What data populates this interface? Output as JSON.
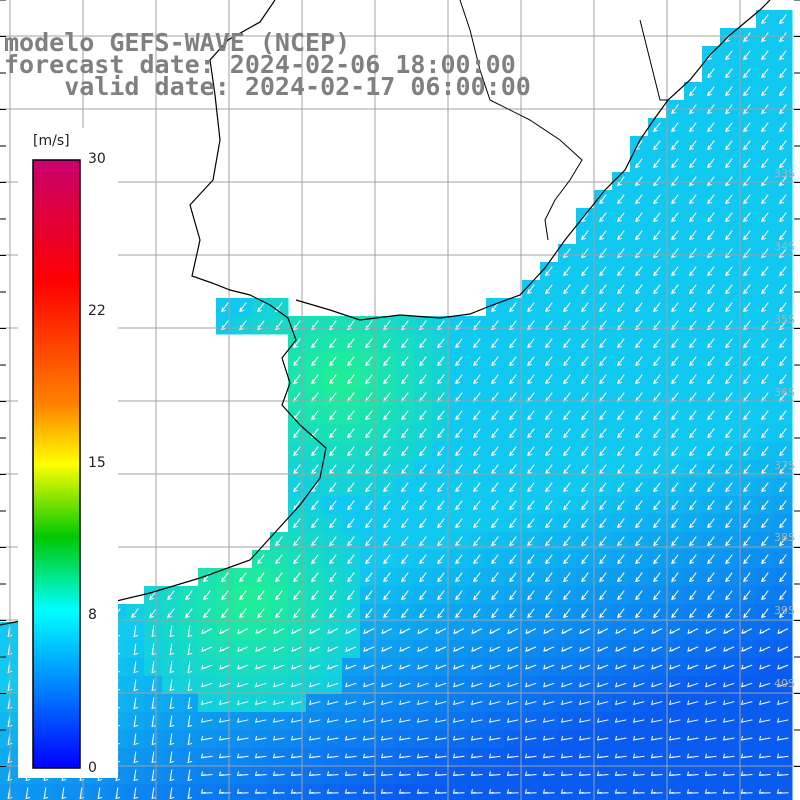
{
  "header": {
    "line1": "modelo GEFS-WAVE (NCEP)",
    "line2": "forecast date: 2024-02-06 18:00:00",
    "line3": "    valid date: 2024-02-17 06:00:00"
  },
  "colorbar": {
    "unit": "[m/s]",
    "ticks": [
      "30",
      "22",
      "15",
      "8",
      "0"
    ],
    "tick_values": [
      30,
      22,
      15,
      8,
      0
    ],
    "colors": [
      "#c8006e",
      "#ff0000",
      "#ff8000",
      "#ffff00",
      "#00c800",
      "#00ffff",
      "#0000ff"
    ]
  },
  "lat_labels": [
    "33S",
    "34S",
    "35S",
    "36S",
    "37S",
    "38S",
    "39S",
    "40S"
  ],
  "colors": {
    "land": "#ffffff",
    "grid": "#a0a0a0",
    "coast": "#000000",
    "arrow": "#ffffff",
    "field_low": "#0a5cf0",
    "field_mid": "#10c8f0",
    "field_high": "#20f090"
  }
}
